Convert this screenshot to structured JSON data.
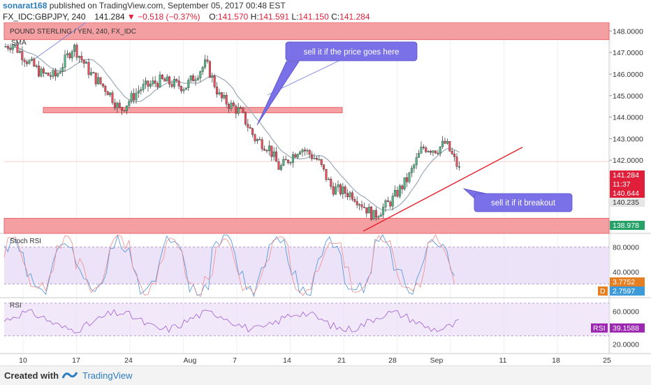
{
  "header": {
    "user": "sonarat168",
    "published": "published on TradingView.com, September 05, 2017 00:48 EST",
    "symbol": "FX_IDC:GBPJPY, 240",
    "last": "141.284",
    "change": "−0.518 (−0.37%)",
    "o_label": "O:",
    "o": "141.570",
    "h_label": "H:",
    "h": "141.591",
    "l_label": "L:",
    "l": "141.150",
    "c_label": "C:",
    "c": "141.284"
  },
  "footer": {
    "created_with": "Created with",
    "brand": "TradingView"
  },
  "colors": {
    "up": "#53b987",
    "down": "#eb4d5c",
    "zone": "#f4a0a3",
    "zone_stroke": "#e8646b",
    "ma": "#9aa9b8",
    "callout": "#7a70e8",
    "panel": "#e7daf7",
    "trend": "#e8202a"
  },
  "chart_data": {
    "type": "candlestick",
    "title": "POUND STERLING / YEN, 240, FX_IDC",
    "series_label": "SMA",
    "ylim": [
      138.6,
      148.4
    ],
    "y_ticks": [
      "148.0000",
      "147.0000",
      "146.0000",
      "145.0000",
      "144.0000",
      "143.0000",
      "142.0000"
    ],
    "x_ticks": [
      "10",
      "17",
      "24",
      "Aug",
      "7",
      "14",
      "21",
      "28",
      "Sep",
      "11",
      "18",
      "25"
    ],
    "price_tags": [
      {
        "value": "141.284",
        "color": "#e0203a"
      },
      {
        "value": "11:37",
        "color": "#e0203a"
      },
      {
        "value": "140.644",
        "color": "#e0203a"
      },
      {
        "value": "140.235",
        "color": "#e6e6e6"
      },
      {
        "value": "138.978",
        "color": "#26a269"
      }
    ],
    "trendline": {
      "start": {
        "x": "27",
        "y": 138.7
      },
      "end": {
        "x": "13",
        "y": 142.6
      }
    },
    "zones": [
      {
        "name": "resistance-top",
        "from": 147.6,
        "to": 148.4
      },
      {
        "name": "middle-resistance",
        "from": 144.2,
        "to": 144.45
      },
      {
        "name": "support-bottom",
        "from": 138.6,
        "to": 139.3
      }
    ],
    "annotations": [
      {
        "text": "sell it if the price goes here"
      },
      {
        "text": "sell it  if it breakout"
      }
    ],
    "indicators": [
      {
        "name": "Stoch RSI",
        "y_ticks": [
          "80.0000",
          "40.0000"
        ],
        "tags": [
          {
            "value": "3.7752",
            "color": "#e67e22"
          },
          {
            "value": "2.7597",
            "color": "#3d9bd9"
          }
        ],
        "letter": "D",
        "band": [
          20,
          80
        ]
      },
      {
        "name": "RSI",
        "y_ticks": [
          "60.0000",
          "40.0000",
          "20.0000"
        ],
        "tags": [
          {
            "value": "39.1588",
            "color": "#9c27b0"
          }
        ],
        "tag_label": "RSI",
        "band": [
          30,
          70
        ]
      }
    ]
  }
}
